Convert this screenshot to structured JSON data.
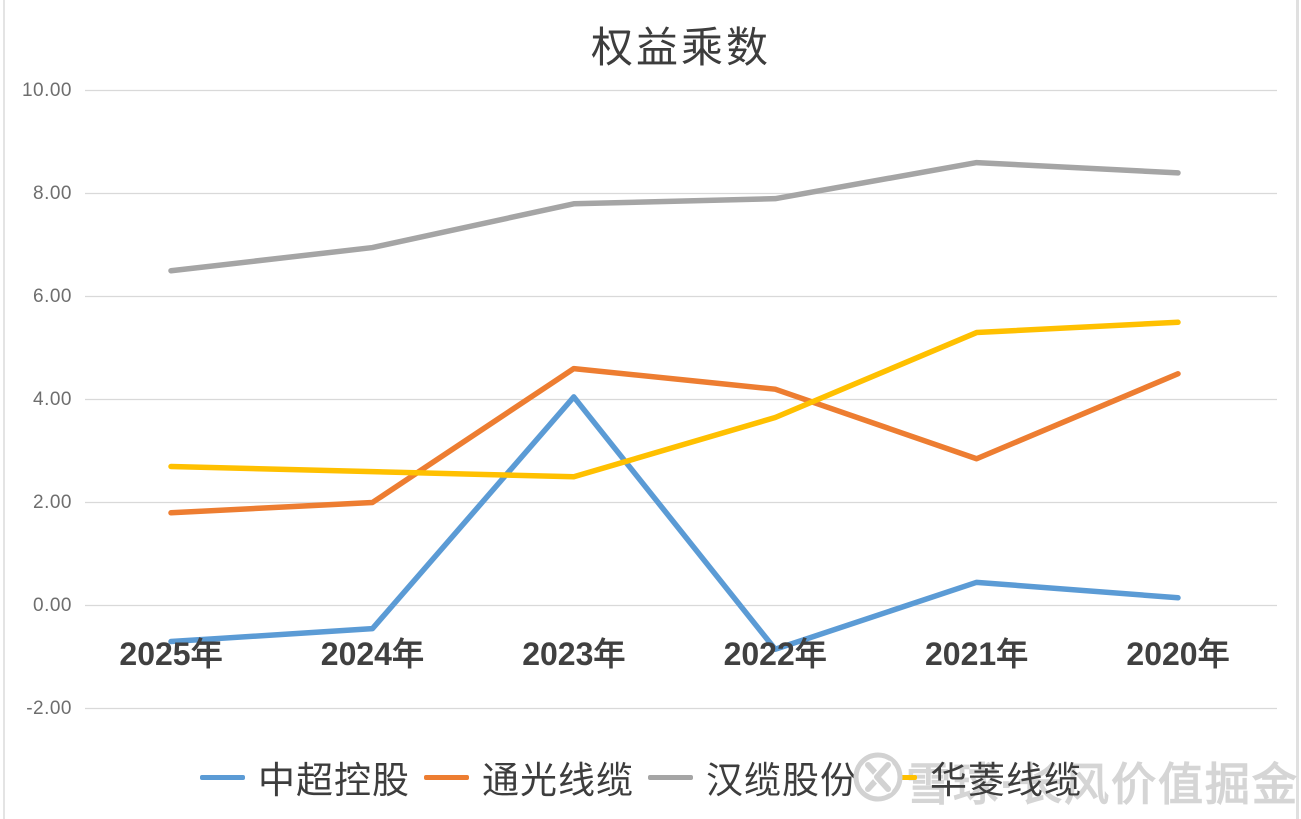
{
  "chart_data": {
    "type": "line",
    "title": "权益乘数",
    "categories": [
      "2025年",
      "2024年",
      "2023年",
      "2022年",
      "2021年",
      "2020年"
    ],
    "series": [
      {
        "name": "中超控股",
        "color": "#5B9BD5",
        "values": [
          -0.7,
          -0.45,
          4.05,
          -0.85,
          0.45,
          0.15
        ]
      },
      {
        "name": "通光线缆",
        "color": "#ED7D31",
        "values": [
          1.8,
          2.0,
          4.6,
          4.2,
          2.85,
          4.5
        ]
      },
      {
        "name": "汉缆股份",
        "color": "#A5A5A5",
        "values": [
          6.5,
          6.95,
          7.8,
          7.9,
          8.6,
          8.4
        ]
      },
      {
        "name": "华菱线缆",
        "color": "#FFC000",
        "values": [
          2.7,
          2.6,
          2.5,
          3.65,
          5.3,
          5.5
        ]
      }
    ],
    "ylim": [
      -2,
      10
    ],
    "y_ticks": [
      {
        "label": "10.00",
        "value": 10
      },
      {
        "label": "8.00",
        "value": 8
      },
      {
        "label": "6.00",
        "value": 6
      },
      {
        "label": "4.00",
        "value": 4
      },
      {
        "label": "2.00",
        "value": 2
      },
      {
        "label": "0.00",
        "value": 0
      },
      {
        "label": "-2.00",
        "value": -2
      }
    ],
    "grid": true,
    "gridline_color": "#d9d9d9",
    "legend_position": "bottom"
  },
  "watermark": {
    "text": "雪球·长风价值掘金"
  }
}
